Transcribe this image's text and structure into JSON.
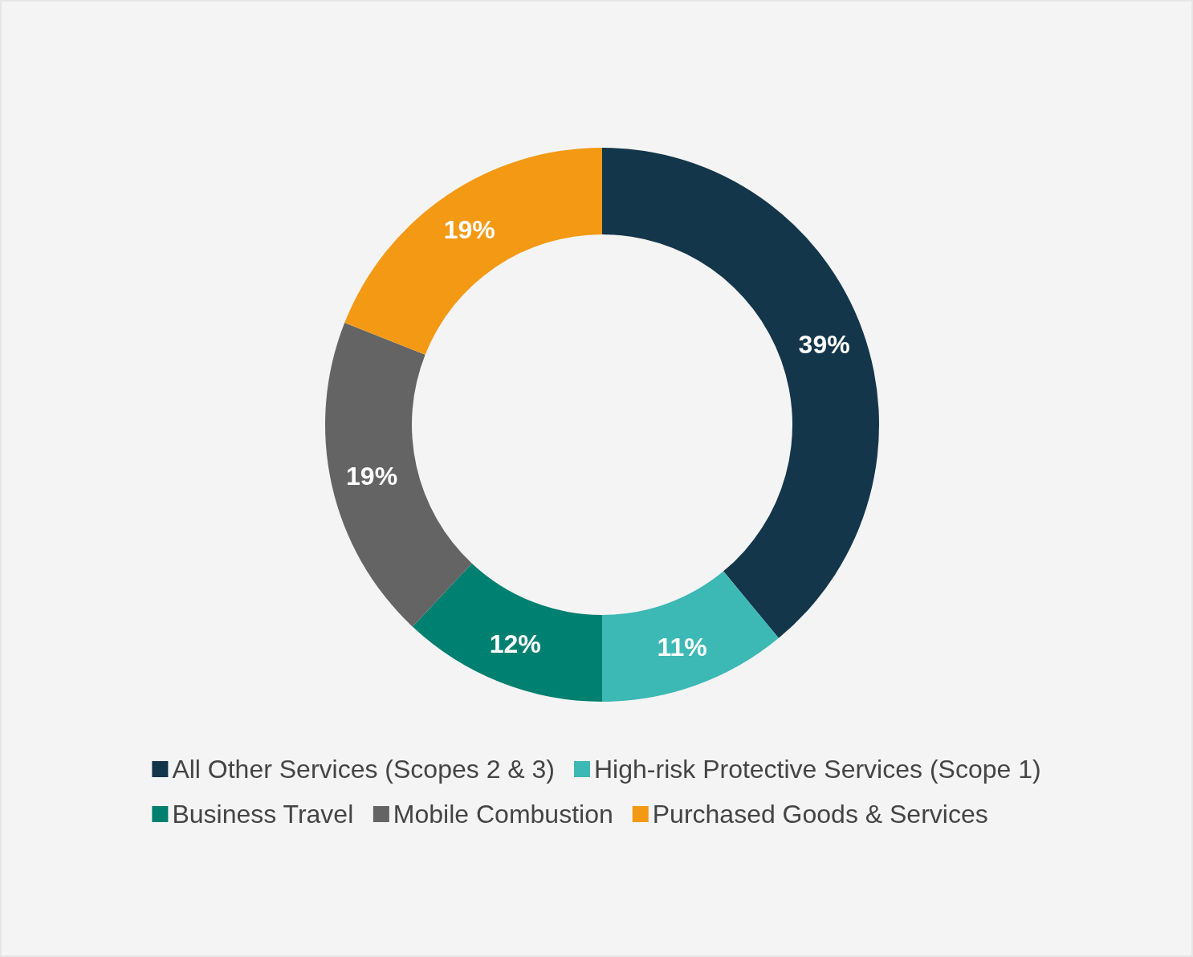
{
  "chart_data": {
    "type": "donut",
    "categories": [
      "All Other Services (Scopes 2 & 3)",
      "High-risk Protective Services (Scope 1)",
      "Business Travel",
      "Mobile Combustion",
      "Purchased Goods & Services"
    ],
    "values": [
      39,
      11,
      12,
      19,
      19
    ],
    "value_labels": [
      "39%",
      "11%",
      "12%",
      "19%",
      "19%"
    ],
    "colors": [
      "#14364a",
      "#3cb8b5",
      "#008070",
      "#646464",
      "#f39914"
    ],
    "legend": "bottom"
  }
}
